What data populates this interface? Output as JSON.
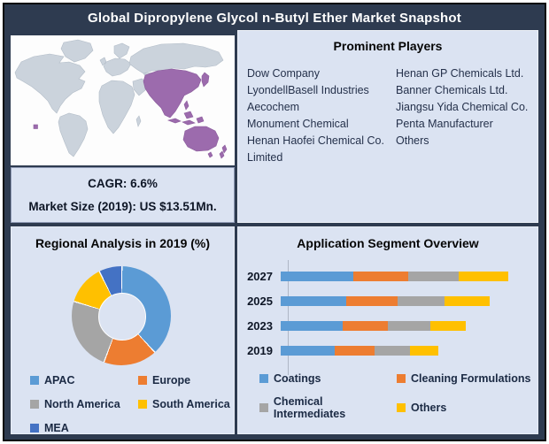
{
  "window": {
    "title": "Global Dipropylene Glycol n-Butyl Ether Market Snapshot"
  },
  "theme": {
    "background_navy": "#2E3B50",
    "panel_light_blue": "#DBE3F2",
    "map_ocean": "#FDFDFD",
    "map_land_gray": "#CBD3DC",
    "map_highlight_purple": "#9C6BAD",
    "outer_border_black": "#0A0A0A",
    "heading_text": "#050505",
    "body_text_navy": "#25314B",
    "title_text_white": "#FFFFFF"
  },
  "stats": {
    "cagr": "CAGR: 6.6%",
    "market_size": "Market Size (2019): US $13.51Mn."
  },
  "players": {
    "heading": "Prominent Players",
    "column1": [
      "Dow Company",
      "LyondellBasell Industries",
      "Aecochem",
      "Monument Chemical",
      "Henan Haofei Chemical Co. Limited"
    ],
    "column2": [
      "Henan GP Chemicals Ltd.",
      "Banner Chemicals Ltd.",
      "Jiangsu Yida Chemical Co.",
      "Penta Manufacturer",
      "Others"
    ]
  },
  "chart_data": [
    {
      "type": "pie",
      "title": "Regional Analysis in 2019 (%)",
      "donut": true,
      "start_angle_deg": 0,
      "labels": [
        "APAC",
        "Europe",
        "North America",
        "South America",
        "MEA"
      ],
      "values": [
        38,
        17.5,
        24,
        13,
        7.5
      ],
      "colors": [
        "#5B9BD5",
        "#ED7D31",
        "#A5A5A5",
        "#FFC000",
        "#4472C4"
      ],
      "legend_position": "bottom",
      "note": "slice percentages estimated from arc angles; no data labels shown in figure"
    },
    {
      "type": "bar",
      "title": "Application Segment Overview",
      "orientation": "horizontal",
      "stacked": true,
      "categories": [
        "2027",
        "2025",
        "2023",
        "2019"
      ],
      "series": [
        {
          "name": "Coatings",
          "color": "#5B9BD5",
          "values": [
            80,
            72,
            68,
            59
          ]
        },
        {
          "name": "Cleaning Formulations",
          "color": "#ED7D31",
          "values": [
            60,
            56,
            50,
            44
          ]
        },
        {
          "name": "Chemical Intermediates",
          "color": "#A5A5A5",
          "values": [
            55,
            52,
            46,
            39
          ]
        },
        {
          "name": "Others",
          "color": "#FFC000",
          "values": [
            55,
            49,
            39,
            31
          ]
        }
      ],
      "x_axis_max": 270,
      "units": "relative width units (no axis tick labels shown)",
      "grid": false,
      "legend_position": "bottom"
    }
  ]
}
